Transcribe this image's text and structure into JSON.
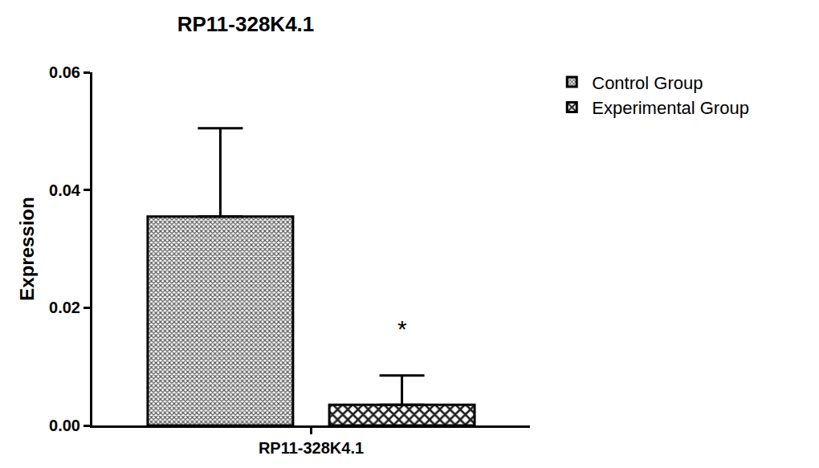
{
  "chart_data": {
    "type": "bar",
    "title": "RP11-328K4.1",
    "y_label": "Expression",
    "categories": [
      "RP11-328K4.1"
    ],
    "series": [
      {
        "name": "Control Group",
        "color": "#555555",
        "values": [
          0.0355
        ],
        "error": [
          0.015
        ]
      },
      {
        "name": "Experimental Group",
        "color": "#222222",
        "values": [
          0.0035
        ],
        "error": [
          0.005
        ]
      }
    ],
    "annotations": [
      {
        "text": "*",
        "x": "RP11-328K4.1",
        "series": "Experimental Group",
        "y": 0.0165
      }
    ],
    "ylim": [
      0,
      0.06
    ],
    "yticks": [
      {
        "value": 0,
        "label": "0.00"
      },
      {
        "value": 0.02,
        "label": "0.02"
      },
      {
        "value": 0.04,
        "label": "0.04"
      },
      {
        "value": 0.06,
        "label": "0.06"
      }
    ],
    "grid": false,
    "legend": "top right"
  }
}
